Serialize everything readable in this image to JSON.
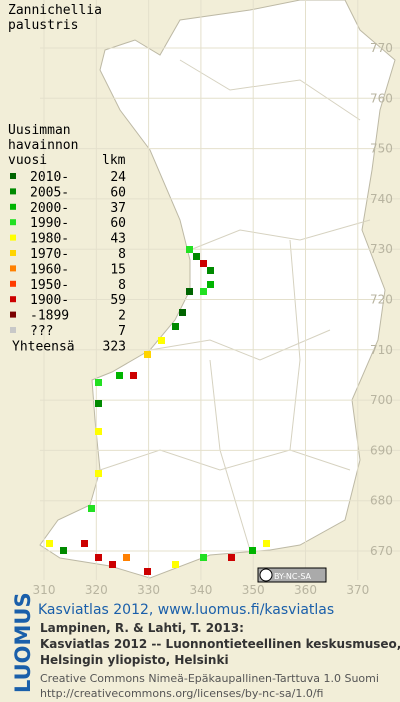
{
  "title": [
    "Zannichellia",
    "palustris"
  ],
  "legend": {
    "heading": [
      "Uusimman",
      "havainnon",
      "vuosi"
    ],
    "count_heading": "lkm",
    "rows": [
      {
        "label": "2010-",
        "count": 24,
        "color": "#006400"
      },
      {
        "label": "2005-",
        "count": 60,
        "color": "#008a00"
      },
      {
        "label": "2000-",
        "count": 37,
        "color": "#00b400"
      },
      {
        "label": "1990-",
        "count": 60,
        "color": "#22e022"
      },
      {
        "label": "1980-",
        "count": 43,
        "color": "#ffff00"
      },
      {
        "label": "1970-",
        "count": 8,
        "color": "#ffd400"
      },
      {
        "label": "1960-",
        "count": 15,
        "color": "#ff8000"
      },
      {
        "label": "1950-",
        "count": 8,
        "color": "#ff3c00"
      },
      {
        "label": "1900-",
        "count": 59,
        "color": "#cc0000"
      },
      {
        "label": "-1899",
        "count": 2,
        "color": "#7a0000"
      },
      {
        "label": "???",
        "count": 7,
        "color": "#c8c8c8"
      }
    ],
    "total_label": "Yhteensä",
    "total": 323
  },
  "grid": {
    "northing": [
      770,
      760,
      750,
      740,
      730,
      720,
      710,
      700,
      690,
      680,
      670
    ],
    "easting": [
      310,
      320,
      330,
      340,
      350,
      360,
      370
    ]
  },
  "license_badge": "BY-NC-SA",
  "logo": "LUOMUS",
  "credits": {
    "link": "Kasviatlas 2012, www.luomus.fi/kasviatlas",
    "citation": [
      "Lampinen, R. & Lahti, T. 2013:",
      "Kasviatlas 2012 -- Luonnontieteellinen keskusmuseo,",
      "Helsingin yliopisto, Helsinki"
    ],
    "license": [
      "Creative Commons Nimeä-Epäkaupallinen-Tarttuva 1.0 Suomi",
      "http://creativecommons.org/licenses/by-nc-sa/1.0/fi"
    ]
  }
}
